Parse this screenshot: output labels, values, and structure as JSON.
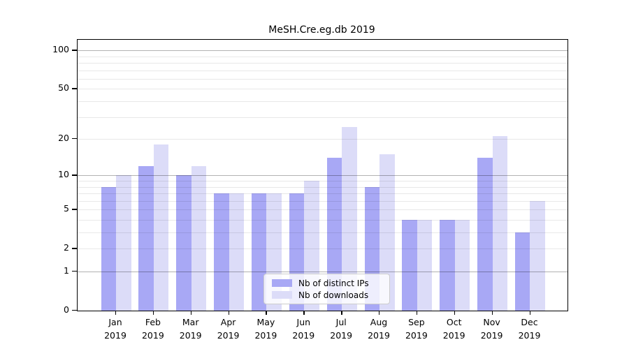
{
  "figure": {
    "title": "MeSH.Cre.eg.db 2019"
  },
  "colors": {
    "distinct_ips_bar": "#a8a8f5",
    "downloads_bar": "#dcdcf8",
    "axis": "#000000",
    "major_grid": "#b5b5b5",
    "minor_grid": "#e9e9e9",
    "legend_border": "#cccccc",
    "legend_background": "rgba(255,255,255,0.8)"
  },
  "chart_data": {
    "type": "bar",
    "title": "MeSH.Cre.eg.db 2019",
    "categories": [
      "Jan",
      "Feb",
      "Mar",
      "Apr",
      "May",
      "Jun",
      "Jul",
      "Aug",
      "Sep",
      "Oct",
      "Nov",
      "Dec"
    ],
    "category_year": "2019",
    "series": [
      {
        "name": "Nb of distinct IPs",
        "color": "#a8a8f5",
        "values": [
          8,
          12,
          10,
          7,
          7,
          7,
          14,
          8,
          4,
          4,
          14,
          3
        ]
      },
      {
        "name": "Nb of downloads",
        "color": "#dcdcf8",
        "values": [
          10,
          18,
          12,
          7,
          7,
          9,
          25,
          15,
          4,
          4,
          21,
          6
        ]
      }
    ],
    "xlabel": "",
    "ylabel": "",
    "yscale": "log1p",
    "ylim": [
      0,
      121
    ],
    "yticks": [
      100,
      50,
      20,
      10,
      5,
      2,
      1,
      0
    ],
    "grid_major_values": [
      1,
      10,
      100
    ],
    "grid_minor_values": [
      2,
      3,
      4,
      5,
      6,
      7,
      8,
      9,
      20,
      30,
      40,
      50,
      60,
      70,
      80,
      90
    ],
    "grid": true,
    "legend_position": "lower center-right, inside plot"
  }
}
